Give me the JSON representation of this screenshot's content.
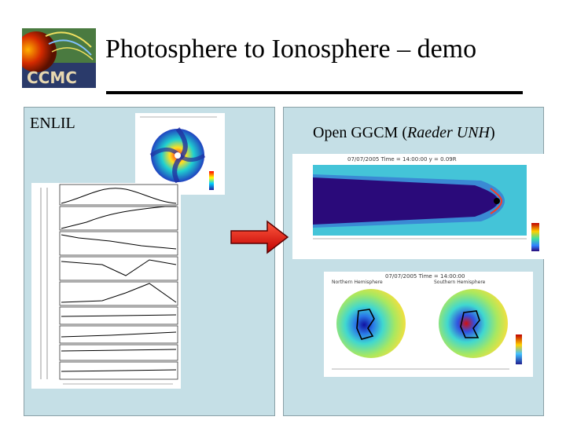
{
  "slide": {
    "title": "Photosphere to Ionosphere – demo",
    "logo_text": "CCMC"
  },
  "left_panel": {
    "label": "ENLIL"
  },
  "right_panel": {
    "label_main": "Open GGCM (",
    "label_italic": "Raeder UNH",
    "label_end": ")"
  },
  "magnetosphere_plot": {
    "header": "07/07/2005  Time = 14:00:00  y = 0.09R"
  },
  "ionosphere_plot": {
    "header": "07/07/2005  Time = 14:00:00",
    "north_title": "Northern Hemisphere",
    "south_title": "Southern Hemisphere"
  },
  "colors": {
    "panel_bg": "#c5dfe6",
    "arrow": "#e8201c",
    "rule": "#000000"
  }
}
